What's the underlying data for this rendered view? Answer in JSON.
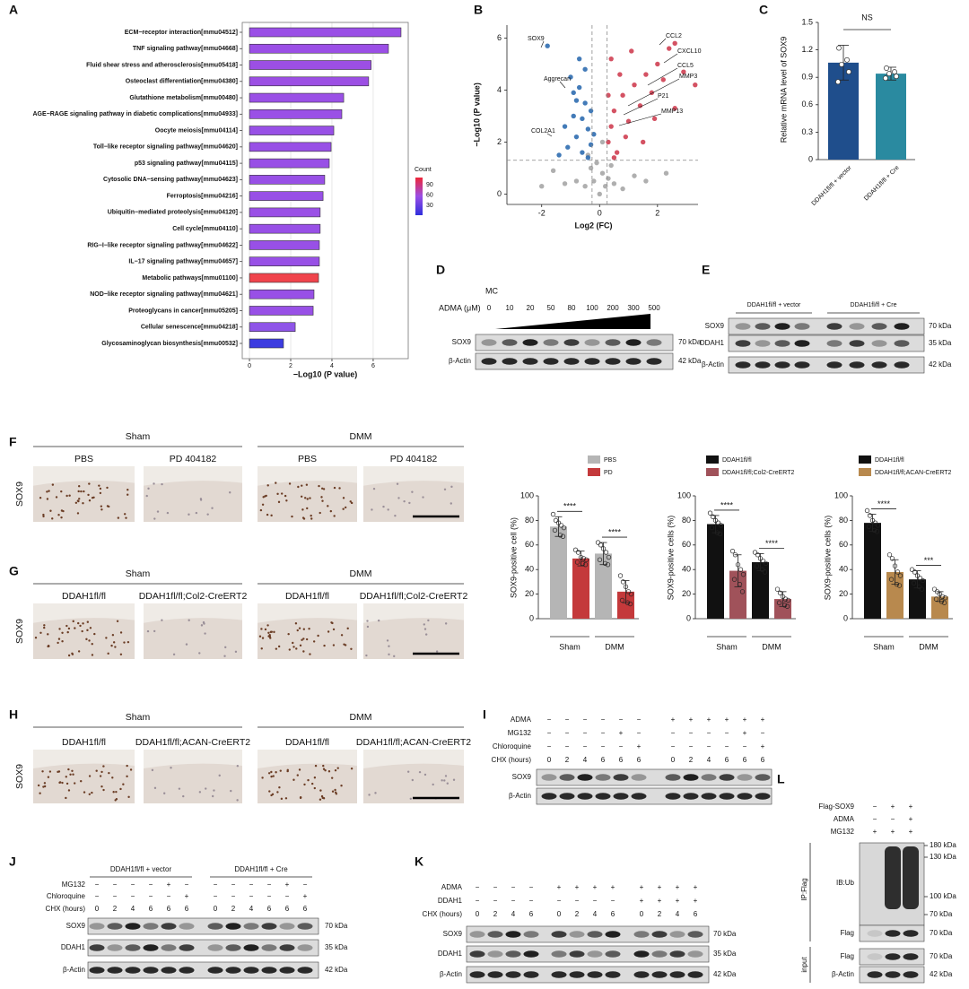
{
  "chart_data": [
    {
      "type": "barh",
      "categories": [
        "ECM−receptor interaction[mmu04512]",
        "TNF signaling pathway[mmu04668]",
        "Fluid shear stress and atherosclerosis[mmu05418]",
        "Osteoclast differentiation[mmu04380]",
        "Glutathione metabolism[mmu00480]",
        "AGE−RAGE signaling pathway in diabetic complications[mmu04933]",
        "Oocyte meiosis[mmu04114]",
        "Toll−like receptor signaling pathway[mmu04620]",
        "p53 signaling pathway[mmu04115]",
        "Cytosolic DNA−sensing pathway[mmu04623]",
        "Ferroptosis[mmu04216]",
        "Ubiquitin−mediated proteolysis[mmu04120]",
        "Cell cycle[mmu04110]",
        "RIG−I−like receptor signaling pathway[mmu04622]",
        "IL−17 signaling pathway[mmu04657]",
        "Metabolic pathways[mmu01100]",
        "NOD−like receptor signaling pathway[mmu04621]",
        "Proteoglycans in cancer[mmu05205]",
        "Cellular senescence[mmu04218]",
        "Glycosaminoglycan biosynthesis[mmu00532]"
      ],
      "values": [
        7.35,
        6.74,
        5.9,
        5.78,
        4.57,
        4.48,
        4.09,
        3.96,
        3.87,
        3.65,
        3.57,
        3.43,
        3.43,
        3.39,
        3.39,
        3.35,
        3.13,
        3.09,
        2.22,
        1.65
      ],
      "colors": [
        "#9a4fe6",
        "#9b4fe6",
        "#9c4fe4",
        "#9c4fe4",
        "#9a50e6",
        "#9a50e6",
        "#9850e6",
        "#9850e6",
        "#9850e6",
        "#9850e6",
        "#9850e6",
        "#9a50e6",
        "#9850e6",
        "#9850e6",
        "#9850e6",
        "#f0444c",
        "#9850e6",
        "#9850e6",
        "#8f55e8",
        "#3c3ce0"
      ],
      "xlim": [
        -0.35,
        7.7
      ],
      "xticks": [
        0,
        2,
        4,
        6
      ],
      "grid": true,
      "xlabel": "−Log10 (P value)",
      "colorbar": {
        "title": "Count",
        "ticks": [
          90,
          60,
          30
        ],
        "clim": [
          1,
          111
        ],
        "colorscale": [
          "#2f2fdc",
          "#9a4fe6",
          "#ee2638"
        ]
      }
    },
    {
      "type": "scatter",
      "series": [
        {
          "color": "#a6a6a6",
          "x": [
            0,
            0.2,
            -0.2,
            0.1,
            -0.3,
            0.3,
            -0.1,
            0.5,
            -0.5,
            0.8,
            -0.8,
            1.2,
            -1.2,
            0.4,
            -0.4,
            0.1,
            2.3,
            -2.0,
            1.6,
            -1.6
          ],
          "y": [
            0,
            0.3,
            0.5,
            0.8,
            1.0,
            0.6,
            1.2,
            0.4,
            0.3,
            0.2,
            0.5,
            0.7,
            0.4,
            1.1,
            1.5,
            2.0,
            0.8,
            0.3,
            0.5,
            0.9
          ]
        },
        {
          "color": "#2f6db0",
          "x": [
            -1.8,
            -1.0,
            -0.9,
            -0.7,
            -0.5,
            -0.6,
            -0.4,
            -0.8,
            -1.1,
            -0.3,
            -0.5,
            -0.9,
            -0.6,
            -0.3,
            -1.2,
            -0.7,
            -0.4,
            -1.4,
            -0.2,
            -0.8
          ],
          "y": [
            5.7,
            4.5,
            3.9,
            4.1,
            3.5,
            2.9,
            2.5,
            2.2,
            1.8,
            1.9,
            4.8,
            3.0,
            1.6,
            3.2,
            2.6,
            5.2,
            1.4,
            1.5,
            2.3,
            3.6
          ]
        },
        {
          "color": "#cf3f52",
          "x": [
            2.4,
            2.6,
            2.0,
            1.6,
            1.2,
            0.8,
            0.5,
            0.4,
            0.3,
            0.6,
            1.0,
            1.4,
            1.8,
            2.2,
            0.7,
            0.4,
            1.1,
            2.9,
            3.3,
            0.9,
            1.5,
            0.5,
            2.6,
            1.9,
            0.3
          ],
          "y": [
            5.6,
            5.8,
            5.0,
            4.6,
            4.2,
            3.8,
            3.2,
            2.6,
            2.0,
            1.6,
            2.8,
            3.4,
            3.9,
            4.4,
            4.6,
            5.2,
            5.5,
            4.7,
            4.2,
            2.2,
            2.0,
            1.4,
            3.3,
            2.9,
            3.8
          ]
        }
      ],
      "xlim": [
        -3.2,
        3.4
      ],
      "ylim": [
        -0.4,
        6.5
      ],
      "xticks": [
        -2,
        0,
        2
      ],
      "yticks": [
        0,
        2,
        4,
        6
      ],
      "xlabel": "Log2 (FC)",
      "ylabel": "−Log10 (P value)",
      "thresholds": {
        "x": [
          -0.26,
          0.26
        ],
        "y": 1.3
      },
      "annotations": [
        "SOX9",
        "Aggrecan",
        "COL2A1",
        "CCL2",
        "CXCL10",
        "CCL5",
        "MMP3",
        "P21",
        "MMP13"
      ]
    },
    {
      "type": "bar",
      "categories": [
        "DDAH1fl/fl + vector",
        "DDAH1fl/fl + Cre"
      ],
      "values": [
        1.06,
        0.94
      ],
      "errors": [
        0.19,
        0.07
      ],
      "points": [
        [
          1.22,
          1.09,
          1.04,
          0.96,
          0.85
        ],
        [
          1.0,
          0.96,
          0.94,
          0.91,
          0.89
        ]
      ],
      "colors": [
        "#1f4e8c",
        "#2a8aa0"
      ],
      "ylim": [
        0,
        1.5
      ],
      "yticks": [
        0,
        0.3,
        0.6,
        0.9,
        1.2,
        1.5
      ],
      "ylabel": "Relative mRNA level of SOX9",
      "annotations": [
        "NS"
      ]
    },
    {
      "type": "groupedbar",
      "categories": [
        "Sham",
        "DMM"
      ],
      "series": [
        {
          "name": "PBS",
          "color": "#b5b5b5",
          "values": [
            75,
            53
          ],
          "errors": [
            8,
            9
          ],
          "points": [
            [
              85,
              80,
              78,
              76,
              74,
              72,
              68,
              67
            ],
            [
              62,
              60,
              57,
              54,
              50,
              48,
              45,
              44
            ]
          ]
        },
        {
          "name": "PD",
          "color": "#c4393b",
          "values": [
            49,
            22
          ],
          "errors": [
            6,
            9
          ],
          "points": [
            [
              56,
              54,
              50,
              49,
              48,
              46,
              45,
              44
            ],
            [
              35,
              30,
              26,
              22,
              20,
              15,
              13,
              12
            ]
          ]
        }
      ],
      "ylim": [
        0,
        100
      ],
      "yticks": [
        0,
        20,
        40,
        60,
        80,
        100
      ],
      "ylabel": "SOX9-positive cell (%)",
      "annotations": [
        "****",
        "****"
      ]
    },
    {
      "type": "groupedbar",
      "categories": [
        "Sham",
        "DMM"
      ],
      "series": [
        {
          "name": "DDAH1fl/fl",
          "color": "#111111",
          "values": [
            77,
            46
          ],
          "errors": [
            7,
            7
          ],
          "points": [
            [
              86,
              83,
              80,
              78,
              76,
              74,
              70,
              69
            ],
            [
              54,
              52,
              49,
              47,
              45,
              43,
              40,
              38
            ]
          ]
        },
        {
          "name": "DDAH1fl/fl;Col2-CreERT2",
          "color": "#a0525a",
          "values": [
            39,
            16
          ],
          "errors": [
            13,
            6
          ],
          "points": [
            [
              55,
              52,
              44,
              40,
              36,
              32,
              28,
              22
            ],
            [
              24,
              21,
              18,
              16,
              15,
              13,
              11,
              10
            ]
          ]
        }
      ],
      "ylim": [
        0,
        100
      ],
      "yticks": [
        0,
        20,
        40,
        60,
        80,
        100
      ],
      "ylabel": "SOX9-positive cells (%)",
      "annotations": [
        "****",
        "****"
      ]
    },
    {
      "type": "groupedbar",
      "categories": [
        "Sham",
        "DMM"
      ],
      "series": [
        {
          "name": "DDAH1fl/fl",
          "color": "#111111",
          "values": [
            78,
            32
          ],
          "errors": [
            7,
            7
          ],
          "points": [
            [
              88,
              84,
              80,
              78,
              76,
              75,
              72,
              71
            ],
            [
              40,
              38,
              35,
              33,
              31,
              29,
              26,
              24
            ]
          ]
        },
        {
          "name": "DDAH1fl/fl;ACAN-CreERT2",
          "color": "#b8894e",
          "values": [
            38,
            18
          ],
          "errors": [
            10,
            4
          ],
          "points": [
            [
              52,
              49,
              43,
              38,
              35,
              32,
              28,
              27
            ],
            [
              24,
              22,
              20,
              18,
              17,
              16,
              14,
              13
            ]
          ]
        }
      ],
      "ylim": [
        0,
        100
      ],
      "yticks": [
        0,
        20,
        40,
        60,
        80,
        100
      ],
      "ylabel": "SOX9-positive cells (%)",
      "annotations": [
        "****",
        "***"
      ]
    }
  ],
  "figure": {
    "letters": [
      "A",
      "B",
      "C",
      "D",
      "E",
      "F",
      "G",
      "H",
      "I",
      "J",
      "K",
      "L"
    ],
    "panelD": {
      "treatment": "MC",
      "dose_label": "ADMA (μM)",
      "doses": [
        0,
        10,
        20,
        50,
        80,
        100,
        200,
        300,
        500
      ],
      "rows": [
        {
          "label": "SOX9",
          "size": "70 kDa"
        },
        {
          "label": "β-Actin",
          "size": "42 kDa"
        }
      ]
    },
    "panelE": {
      "groups": [
        "DDAH1fl/fl + vector",
        "DDAH1fl/fl + Cre"
      ],
      "rows": [
        {
          "label": "SOX9",
          "size": "70 kDa"
        },
        {
          "label": "DDAH1",
          "size": "35 kDa"
        },
        {
          "label": "β-Actin",
          "size": "42 kDa"
        }
      ]
    },
    "panelF": {
      "stain": "SOX9",
      "groups": [
        {
          "label": "Sham",
          "subs": [
            "PBS",
            "PD 404182"
          ]
        },
        {
          "label": "DMM",
          "subs": [
            "PBS",
            "PD 404182"
          ]
        }
      ]
    },
    "panelG": {
      "stain": "SOX9",
      "groups": [
        {
          "label": "Sham",
          "subs": [
            "DDAH1fl/fl",
            "DDAH1fl/fl;Col2-CreERT2"
          ]
        },
        {
          "label": "DMM",
          "subs": [
            "DDAH1fl/fl",
            "DDAH1fl/fl;Col2-CreERT2"
          ]
        }
      ]
    },
    "panelH": {
      "stain": "SOX9",
      "groups": [
        {
          "label": "Sham",
          "subs": [
            "DDAH1fl/fl",
            "DDAH1fl/fl;ACAN-CreERT2"
          ]
        },
        {
          "label": "DMM",
          "subs": [
            "DDAH1fl/fl",
            "DDAH1fl/fl;ACAN-CreERT2"
          ]
        }
      ]
    },
    "panelI": {
      "conditions": [
        {
          "label": "ADMA",
          "marks": [
            "−",
            "−",
            "−",
            "−",
            "−",
            "−",
            "+",
            "+",
            "+",
            "+",
            "+",
            "+"
          ]
        },
        {
          "label": "MG132",
          "marks": [
            "−",
            "−",
            "−",
            "−",
            "+",
            "−",
            "−",
            "−",
            "−",
            "−",
            "+",
            "−"
          ]
        },
        {
          "label": "Chloroquine",
          "marks": [
            "−",
            "−",
            "−",
            "−",
            "−",
            "+",
            "−",
            "−",
            "−",
            "−",
            "−",
            "+"
          ]
        },
        {
          "label": "CHX (hours)",
          "marks": [
            0,
            2,
            4,
            6,
            6,
            6,
            0,
            2,
            4,
            6,
            6,
            6
          ]
        }
      ],
      "rows": [
        {
          "label": "SOX9"
        },
        {
          "label": "β-Actin"
        }
      ]
    },
    "panelJ": {
      "groups": [
        "DDAH1fl/fl + vector",
        "DDAH1fl/fl + Cre"
      ],
      "conditions": [
        {
          "label": "MG132",
          "marks": [
            "−",
            "−",
            "−",
            "−",
            "+",
            "−",
            "−",
            "−",
            "−",
            "−",
            "+",
            "−"
          ]
        },
        {
          "label": "Chloroquine",
          "marks": [
            "−",
            "−",
            "−",
            "−",
            "−",
            "+",
            "−",
            "−",
            "−",
            "−",
            "−",
            "+"
          ]
        },
        {
          "label": "CHX (hours)",
          "marks": [
            0,
            2,
            4,
            6,
            6,
            6,
            0,
            2,
            4,
            6,
            6,
            6
          ]
        }
      ],
      "rows": [
        {
          "label": "SOX9",
          "size": "70 kDa"
        },
        {
          "label": "DDAH1",
          "size": "35 kDa"
        },
        {
          "label": "β-Actin",
          "size": "42 kDa"
        }
      ]
    },
    "panelK": {
      "conditions": [
        {
          "label": "ADMA",
          "marks": [
            "−",
            "−",
            "−",
            "−",
            "+",
            "+",
            "+",
            "+",
            "+",
            "+",
            "+",
            "+"
          ]
        },
        {
          "label": "DDAH1",
          "marks": [
            "−",
            "−",
            "−",
            "−",
            "−",
            "−",
            "−",
            "−",
            "+",
            "+",
            "+",
            "+"
          ]
        },
        {
          "label": "CHX (hours)",
          "marks": [
            0,
            2,
            4,
            6,
            0,
            2,
            4,
            6,
            0,
            2,
            4,
            6
          ]
        }
      ],
      "rows": [
        {
          "label": "SOX9",
          "size": "70 kDa"
        },
        {
          "label": "DDAH1",
          "size": "35 kDa"
        },
        {
          "label": "β-Actin",
          "size": "42 kDa"
        }
      ]
    },
    "panelL": {
      "conditions": [
        {
          "label": "Flag-SOX9",
          "marks": [
            "−",
            "+",
            "+"
          ]
        },
        {
          "label": "ADMA",
          "marks": [
            "−",
            "−",
            "+"
          ]
        },
        {
          "label": "MG132",
          "marks": [
            "+",
            "+",
            "+"
          ]
        }
      ],
      "ip": "IP:Flag",
      "input": "input",
      "ladder": [
        "180 kDa",
        "130 kDa",
        "100 kDa",
        "70 kDa"
      ],
      "rows": [
        {
          "label": "IB:Ub"
        },
        {
          "label": "Flag",
          "size": "70 kDa"
        },
        {
          "label": "Flag",
          "size": "70 kDa"
        },
        {
          "label": "β-Actin",
          "size": "42 kDa"
        }
      ]
    }
  }
}
